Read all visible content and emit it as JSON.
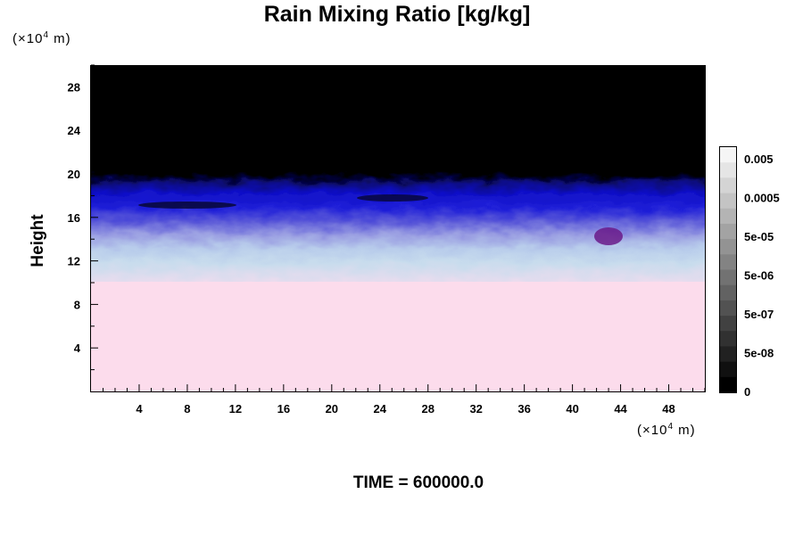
{
  "chart_data": {
    "type": "heatmap",
    "title": "Rain Mixing Ratio [kg/kg]",
    "xlabel": "",
    "ylabel": "Height",
    "x_unit": {
      "base": "(×10",
      "exponent": "4",
      "tail": " m)"
    },
    "y_unit": {
      "base": "(×10",
      "exponent": "4",
      "tail": " m)"
    },
    "x_ticks": [
      4,
      8,
      12,
      16,
      20,
      24,
      28,
      32,
      36,
      40,
      44,
      48
    ],
    "y_ticks": [
      4,
      8,
      12,
      16,
      20,
      24,
      28
    ],
    "xlim": [
      0,
      51
    ],
    "ylim": [
      0,
      30
    ],
    "colorbar": {
      "labels": [
        "0.005",
        "0.0005",
        "5e-05",
        "5e-06",
        "5e-07",
        "5e-08",
        "0"
      ],
      "levels": 16,
      "colors": {
        "top": "#f5f5f5",
        "bottom": "#000000"
      }
    },
    "layers": [
      {
        "height_range": [
          0,
          10
        ],
        "description_color": "#fcdcec"
      },
      {
        "height_range": [
          10,
          12.5
        ],
        "description_color": "#c8d8ee"
      },
      {
        "height_range": [
          12.5,
          15
        ],
        "description_color": "#8a8cdc"
      },
      {
        "height_range": [
          15,
          19
        ],
        "description_color": "#1010d0"
      },
      {
        "height_range": [
          19,
          30
        ],
        "description_color": "#000000"
      }
    ],
    "annotation": "TIME = 600000.0"
  }
}
